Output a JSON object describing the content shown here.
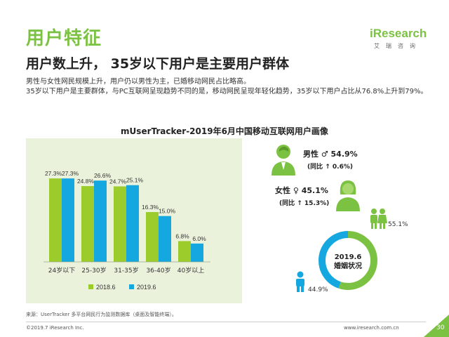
{
  "header": {
    "title": "用户特征",
    "logo_main": "iResearch",
    "logo_sub": "艾瑞咨询"
  },
  "subtitle": "用户数上升， 35岁以下用户是主要用户群体",
  "description": [
    "男性与女性网民规模上升，用户仍以男性为主，已婚移动网民占比略高。",
    "35岁以下用户是主要群体，与PC互联网呈现趋势不同的是，移动网民呈现年轻化趋势，35岁以下用户占比从76.8%上升到79%。"
  ],
  "chart_title": "mUserTracker-2019年6月中国移动互联网用户画像",
  "colors": {
    "brand_green": "#7cc242",
    "series_2018": "#9ccc2c",
    "series_2019": "#15a7e0",
    "panel_bg": "#eaf2dc",
    "donut_married": "#7cc242",
    "donut_single": "#15a7e0"
  },
  "chart_data": [
    {
      "type": "bar",
      "title": "",
      "categories": [
        "24岁以下",
        "25-30岁",
        "31-35岁",
        "36-40岁",
        "40岁以上"
      ],
      "series": [
        {
          "name": "2018.6",
          "values": [
            27.3,
            24.8,
            24.7,
            16.3,
            6.8
          ],
          "labels": [
            "27.3%",
            "24.8%",
            "24.7%",
            "16.3%",
            "6.8%"
          ]
        },
        {
          "name": "2019.6",
          "values": [
            27.3,
            26.6,
            25.1,
            15.0,
            6.0
          ],
          "labels": [
            "27.3%",
            "26.6%",
            "25.1%",
            "15.0%",
            "6.0%"
          ]
        }
      ],
      "ylim": [
        0,
        34
      ],
      "legend": "bottom"
    },
    {
      "type": "pie",
      "title": "2019.6婚姻状况",
      "slices": [
        {
          "label": "已婚",
          "value": 55.1,
          "display": "55.1%"
        },
        {
          "label": "未婚",
          "value": 44.9,
          "display": "44.9%"
        }
      ]
    }
  ],
  "gender": {
    "male_label": "男性 ♂ 54.9%",
    "male_yoy": "(同比 ↑ 0.6%)",
    "female_label": "女性 ♀ 45.1%",
    "female_yoy": "(同比 ↑ 15.3%)",
    "male_share": 54.9,
    "female_share": 45.1
  },
  "donut_center": [
    "2019.6",
    "婚姻状况"
  ],
  "source": "来源：UserTracker 多平台网民行为监测数据库（桌面及智能终端）。",
  "footer": {
    "copyright": "©2019.7 iResearch Inc.",
    "site": "www.iresearch.com.cn",
    "page": "30"
  }
}
